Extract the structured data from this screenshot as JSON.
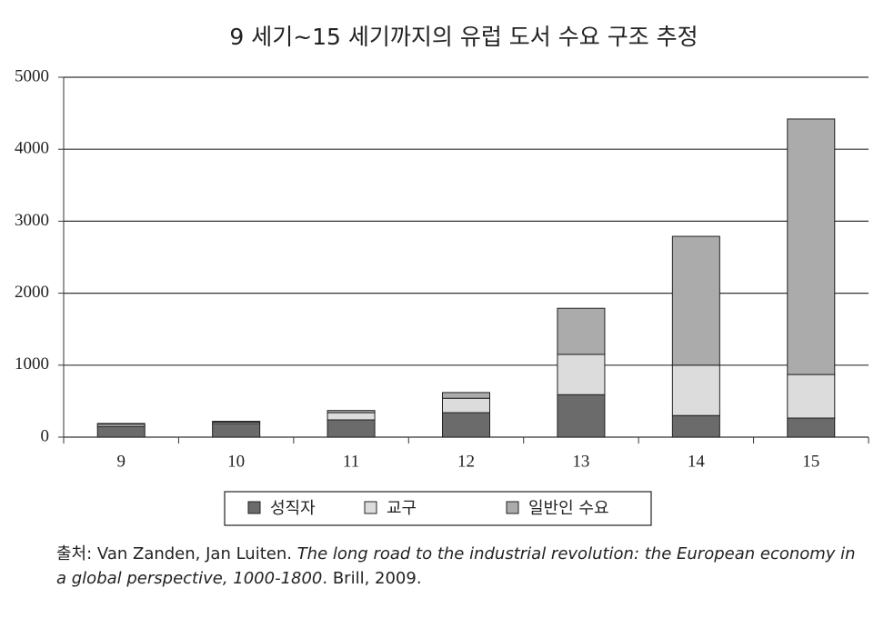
{
  "chart_data": {
    "type": "stacked-bar",
    "title": "9 세기~15 세기까지의 유럽 도서 수요 구조 추정",
    "categories": [
      "9",
      "10",
      "11",
      "12",
      "13",
      "14",
      "15"
    ],
    "series": [
      {
        "name": "성직자",
        "color": "#6b6b6b",
        "values": [
          150,
          190,
          240,
          340,
          590,
          300,
          265
        ]
      },
      {
        "name": "교구",
        "color": "#dcdcdc",
        "values": [
          30,
          20,
          100,
          200,
          560,
          700,
          605
        ]
      },
      {
        "name": "일반인 수요",
        "color": "#ababab",
        "values": [
          10,
          10,
          30,
          80,
          640,
          1790,
          3550
        ]
      }
    ],
    "ylim": [
      0,
      5000
    ],
    "yticks": [
      0,
      1000,
      2000,
      3000,
      4000,
      5000
    ],
    "grid": true,
    "legend": "bottom",
    "source": {
      "prefix": "출처: Van Zanden, Jan Luiten. ",
      "title": "The long road to the industrial revolution: the European economy in a global perspective, 1000-1800",
      "suffix": ". Brill, 2009."
    }
  }
}
